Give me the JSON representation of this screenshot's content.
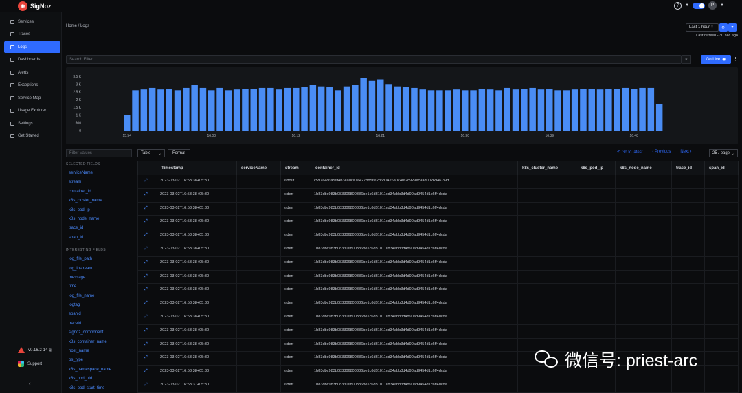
{
  "header": {
    "app_name": "SigNoz",
    "avatar_initial": "P",
    "help_glyph": "?"
  },
  "sidebar": {
    "items": [
      {
        "label": "Services",
        "icon": "chart-icon",
        "active": false
      },
      {
        "label": "Traces",
        "icon": "traces-icon",
        "active": false
      },
      {
        "label": "Logs",
        "icon": "logs-icon",
        "active": true
      },
      {
        "label": "Dashboards",
        "icon": "dashboard-icon",
        "active": false
      },
      {
        "label": "Alerts",
        "icon": "alert-icon",
        "active": false
      },
      {
        "label": "Exceptions",
        "icon": "bug-icon",
        "active": false
      },
      {
        "label": "Service Map",
        "icon": "map-icon",
        "active": false
      },
      {
        "label": "Usage Explorer",
        "icon": "usage-icon",
        "active": false
      },
      {
        "label": "Settings",
        "icon": "gear-icon",
        "active": false
      },
      {
        "label": "Get Started",
        "icon": "rocket-icon",
        "active": false
      }
    ],
    "version": "v0.16.2-14-gi",
    "support_label": "Support"
  },
  "breadcrumb": "Home  /  Logs",
  "time_range": {
    "selected": "Last 1 hour",
    "last_refresh": "Last refresh - 30 sec ago"
  },
  "search": {
    "placeholder": "Search Filter"
  },
  "go_live_label": "Go Live",
  "chart_data": {
    "type": "bar",
    "ylim": [
      0,
      3500
    ],
    "yticks": [
      {
        "label": "3.5 K",
        "value": 3500
      },
      {
        "label": "3 K",
        "value": 3000
      },
      {
        "label": "2.5 K",
        "value": 2500
      },
      {
        "label": "2 K",
        "value": 2000
      },
      {
        "label": "1.5 K",
        "value": 1500
      },
      {
        "label": "1 K",
        "value": 1000
      },
      {
        "label": "500",
        "value": 500
      },
      {
        "label": "0",
        "value": 0
      }
    ],
    "xticks": [
      {
        "label": "15:54",
        "index": 0
      },
      {
        "label": "16:00",
        "index": 10
      },
      {
        "label": "16:12",
        "index": 20
      },
      {
        "label": "16:21",
        "index": 30
      },
      {
        "label": "16:30",
        "index": 40
      },
      {
        "label": "16:39",
        "index": 50
      },
      {
        "label": "16:48",
        "index": 60
      }
    ],
    "values": [
      1000,
      2600,
      2650,
      2750,
      2650,
      2700,
      2600,
      2750,
      2950,
      2750,
      2600,
      2750,
      2600,
      2650,
      2700,
      2700,
      2750,
      2750,
      2650,
      2750,
      2750,
      2800,
      2950,
      2850,
      2800,
      2600,
      2850,
      2950,
      3400,
      3200,
      3300,
      3000,
      2850,
      2800,
      2750,
      2650,
      2600,
      2600,
      2600,
      2650,
      2600,
      2600,
      2700,
      2650,
      2600,
      2750,
      2650,
      2700,
      2750,
      2650,
      2700,
      2600,
      2600,
      2650,
      2700,
      2700,
      2650,
      2700,
      2700,
      2750,
      2700,
      2750,
      2750,
      1700
    ]
  },
  "controls": {
    "filter_placeholder": "Filter Values",
    "view": "Table",
    "format": "Format",
    "go_to_latest": "⟲  Go to latest",
    "previous": "‹  Previous",
    "next": "Next  ›",
    "page_size": "25 / page"
  },
  "fields": {
    "selected_title": "SELECTED FIELDS",
    "selected": [
      "serviceName",
      "stream",
      "container_id",
      "k8s_cluster_name",
      "k8s_pod_ip",
      "k8s_node_name",
      "trace_id",
      "span_id"
    ],
    "interesting_title": "INTERESTING FIELDS",
    "interesting": [
      "log_file_path",
      "log_iostream",
      "message",
      "time",
      "log_file_name",
      "logtag",
      "spanid",
      "traceid",
      "signoz_component",
      "k8s_container_name",
      "host_name",
      "os_type",
      "k8s_namespace_name",
      "k8s_pod_uid",
      "k8s_pod_start_time"
    ]
  },
  "table": {
    "columns": [
      "",
      "Timestamp",
      "serviceName",
      "stream",
      "container_id",
      "k8s_cluster_name",
      "k8s_pod_ip",
      "k8s_node_name",
      "trace_id",
      "span_id"
    ],
    "rows": [
      [
        "2023-03-02T16:53:38+05:30",
        "",
        "stdout",
        "c597a4c6a56f4b3ea0ca7a4278b56a2b680426a0740f28929ec9ad0026946 39d"
      ],
      [
        "2023-03-02T16:53:38+05:30",
        "",
        "stderr",
        "1b83dbc983b083306800386be1c6d31011cd34abb3d4d90ad9454d1c6ff4dcda"
      ],
      [
        "2023-03-02T16:53:38+05:30",
        "",
        "stderr",
        "1b83dbc983b083306800386be1c6d31011cd34abb3d4d90ad9454d1c6ff4dcda"
      ],
      [
        "2023-03-02T16:53:38+05:30",
        "",
        "stderr",
        "1b83dbc983b083306800386be1c6d31011cd34abb3d4d90ad9454d1c6ff4dcda"
      ],
      [
        "2023-03-02T16:53:38+05:30",
        "",
        "stderr",
        "1b83dbc983b083306800386be1c6d31011cd34abb3d4d90ad9454d1c6ff4dcda"
      ],
      [
        "2023-03-02T16:53:38+05:30",
        "",
        "stderr",
        "1b83dbc983b083306800386be1c6d31011cd34abb3d4d90ad9454d1c6ff4dcda"
      ],
      [
        "2023-03-02T16:53:38+05:30",
        "",
        "stderr",
        "1b83dbc983b083306800386be1c6d31011cd34abb3d4d90ad9454d1c6ff4dcda"
      ],
      [
        "2023-03-02T16:53:38+05:30",
        "",
        "stderr",
        "1b83dbc983b083306800386be1c6d31011cd34abb3d4d90ad9454d1c6ff4dcda"
      ],
      [
        "2023-03-02T16:53:38+05:30",
        "",
        "stderr",
        "1b83dbc983b083306800386be1c6d31011cd34abb3d4d90ad9454d1c6ff4dcda"
      ],
      [
        "2023-03-02T16:53:38+05:30",
        "",
        "stderr",
        "1b83dbc983b083306800386be1c6d31011cd34abb3d4d90ad9454d1c6ff4dcda"
      ],
      [
        "2023-03-02T16:53:38+05:30",
        "",
        "stderr",
        "1b83dbc983b083306800386be1c6d31011cd34abb3d4d90ad9454d1c6ff4dcda"
      ],
      [
        "2023-03-02T16:53:38+05:30",
        "",
        "stderr",
        "1b83dbc983b083306800386be1c6d31011cd34abb3d4d90ad9454d1c6ff4dcda"
      ],
      [
        "2023-03-02T16:53:38+05:30",
        "",
        "stderr",
        "1b83dbc983b083306800386be1c6d31011cd34abb3d4d90ad9454d1c6ff4dcda"
      ],
      [
        "2023-03-02T16:53:38+05:30",
        "",
        "stderr",
        "1b83dbc983b083306800386be1c6d31011cd34abb3d4d90ad9454d1c6ff4dcda"
      ],
      [
        "2023-03-02T16:53:38+05:30",
        "",
        "stderr",
        "1b83dbc983b083306800386be1c6d31011cd34abb3d4d90ad9454d1c6ff4dcda"
      ],
      [
        "2023-03-02T16:53:37+05:30",
        "",
        "stderr",
        "1b83dbc983b083306800386be1c6d31011cd34abb3d4d90ad9454d1c6ff4dcda"
      ]
    ]
  },
  "watermark": "微信号: priest-arc",
  "colors": {
    "accent": "#2f6bff",
    "bar": "#4a8df5",
    "link": "#4b8bff"
  }
}
